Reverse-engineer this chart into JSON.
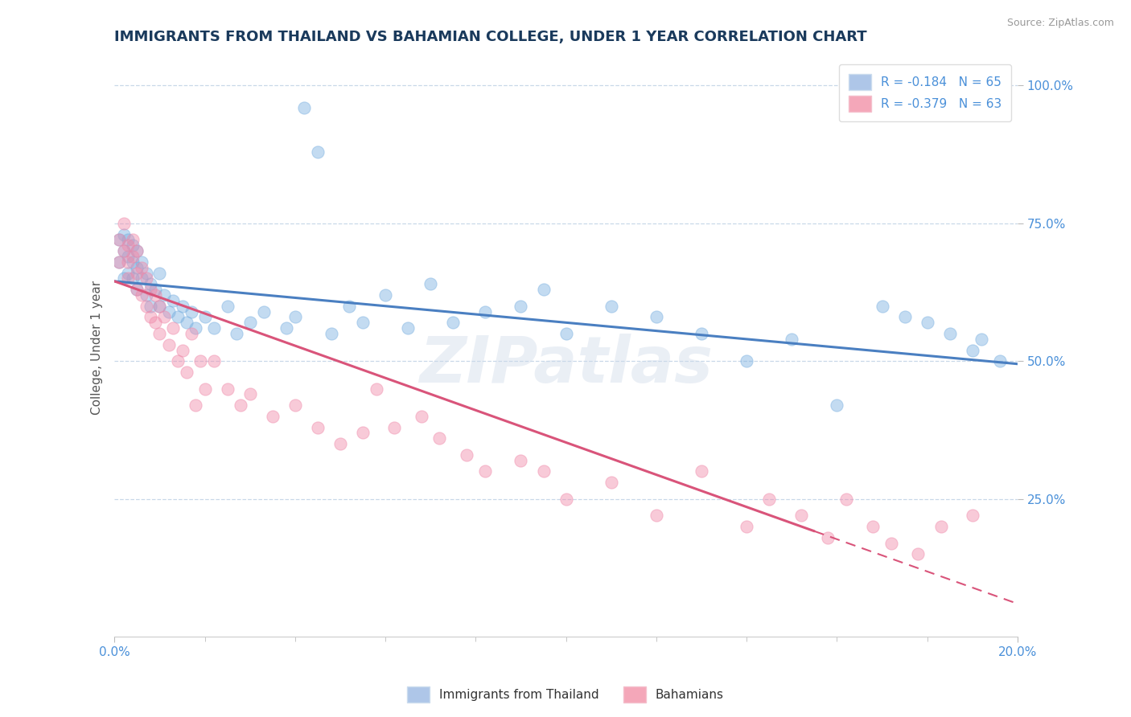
{
  "title": "IMMIGRANTS FROM THAILAND VS BAHAMIAN COLLEGE, UNDER 1 YEAR CORRELATION CHART",
  "source": "Source: ZipAtlas.com",
  "ylabel": "College, Under 1 year",
  "xmin": 0.0,
  "xmax": 0.2,
  "ymin": 0.0,
  "ymax": 1.05,
  "legend_top": [
    {
      "label": "R = -0.184   N = 65",
      "color": "#aec6e8"
    },
    {
      "label": "R = -0.379   N = 63",
      "color": "#f4a7b9"
    }
  ],
  "legend_bottom": [
    {
      "name": "Immigrants from Thailand",
      "color": "#aec6e8"
    },
    {
      "name": "Bahamians",
      "color": "#f4a7b9"
    }
  ],
  "watermark": "ZIPatlas",
  "yticks": [
    0.25,
    0.5,
    0.75,
    1.0
  ],
  "ytick_labels": [
    "25.0%",
    "50.0%",
    "75.0%",
    "100.0%"
  ],
  "blue_scatter_x": [
    0.001,
    0.001,
    0.002,
    0.002,
    0.002,
    0.003,
    0.003,
    0.003,
    0.004,
    0.004,
    0.004,
    0.005,
    0.005,
    0.005,
    0.006,
    0.006,
    0.007,
    0.007,
    0.008,
    0.008,
    0.009,
    0.01,
    0.01,
    0.011,
    0.012,
    0.013,
    0.014,
    0.015,
    0.016,
    0.017,
    0.018,
    0.02,
    0.022,
    0.025,
    0.027,
    0.03,
    0.033,
    0.038,
    0.04,
    0.042,
    0.045,
    0.048,
    0.052,
    0.055,
    0.06,
    0.065,
    0.07,
    0.075,
    0.082,
    0.09,
    0.095,
    0.1,
    0.11,
    0.12,
    0.13,
    0.14,
    0.15,
    0.16,
    0.17,
    0.175,
    0.18,
    0.185,
    0.19,
    0.192,
    0.196
  ],
  "blue_scatter_y": [
    0.72,
    0.68,
    0.7,
    0.73,
    0.65,
    0.72,
    0.69,
    0.66,
    0.71,
    0.68,
    0.65,
    0.7,
    0.67,
    0.63,
    0.68,
    0.65,
    0.66,
    0.62,
    0.64,
    0.6,
    0.63,
    0.66,
    0.6,
    0.62,
    0.59,
    0.61,
    0.58,
    0.6,
    0.57,
    0.59,
    0.56,
    0.58,
    0.56,
    0.6,
    0.55,
    0.57,
    0.59,
    0.56,
    0.58,
    0.96,
    0.88,
    0.55,
    0.6,
    0.57,
    0.62,
    0.56,
    0.64,
    0.57,
    0.59,
    0.6,
    0.63,
    0.55,
    0.6,
    0.58,
    0.55,
    0.5,
    0.54,
    0.42,
    0.6,
    0.58,
    0.57,
    0.55,
    0.52,
    0.54,
    0.5
  ],
  "pink_scatter_x": [
    0.001,
    0.001,
    0.002,
    0.002,
    0.003,
    0.003,
    0.003,
    0.004,
    0.004,
    0.005,
    0.005,
    0.005,
    0.006,
    0.006,
    0.007,
    0.007,
    0.008,
    0.008,
    0.009,
    0.009,
    0.01,
    0.01,
    0.011,
    0.012,
    0.013,
    0.014,
    0.015,
    0.016,
    0.017,
    0.018,
    0.019,
    0.02,
    0.022,
    0.025,
    0.028,
    0.03,
    0.035,
    0.04,
    0.045,
    0.05,
    0.055,
    0.058,
    0.062,
    0.068,
    0.072,
    0.078,
    0.082,
    0.09,
    0.095,
    0.1,
    0.11,
    0.12,
    0.13,
    0.14,
    0.145,
    0.152,
    0.158,
    0.162,
    0.168,
    0.172,
    0.178,
    0.183,
    0.19
  ],
  "pink_scatter_y": [
    0.72,
    0.68,
    0.7,
    0.75,
    0.71,
    0.68,
    0.65,
    0.72,
    0.69,
    0.66,
    0.7,
    0.63,
    0.67,
    0.62,
    0.65,
    0.6,
    0.63,
    0.58,
    0.62,
    0.57,
    0.6,
    0.55,
    0.58,
    0.53,
    0.56,
    0.5,
    0.52,
    0.48,
    0.55,
    0.42,
    0.5,
    0.45,
    0.5,
    0.45,
    0.42,
    0.44,
    0.4,
    0.42,
    0.38,
    0.35,
    0.37,
    0.45,
    0.38,
    0.4,
    0.36,
    0.33,
    0.3,
    0.32,
    0.3,
    0.25,
    0.28,
    0.22,
    0.3,
    0.2,
    0.25,
    0.22,
    0.18,
    0.25,
    0.2,
    0.17,
    0.15,
    0.2,
    0.22
  ],
  "blue_line_color": "#4a7fc1",
  "pink_line_color": "#d9547a",
  "blue_scatter_color": "#7ab0e0",
  "pink_scatter_color": "#f08aaa",
  "grid_color": "#c8d8e8",
  "background_color": "#ffffff",
  "title_color": "#1a3a5c",
  "source_color": "#999999",
  "axis_label_color": "#4a90d9",
  "ylabel_color": "#555555",
  "blue_line_y0": 0.645,
  "blue_line_y1": 0.495,
  "pink_line_y0": 0.645,
  "pink_line_y1": 0.06
}
